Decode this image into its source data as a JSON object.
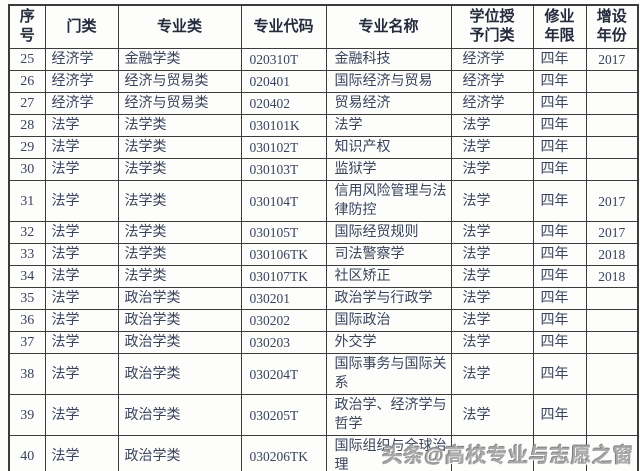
{
  "table": {
    "headers": [
      "序\n号",
      "门类",
      "专业类",
      "专业代码",
      "专业名称",
      "学位授\n予门类",
      "修业\n年限",
      "增设\n年份"
    ],
    "col_keys": [
      "no",
      "category",
      "major-class",
      "code",
      "name",
      "degree",
      "years",
      "year-added"
    ],
    "rows": [
      [
        "25",
        "经济学",
        "金融学类",
        "020310T",
        "金融科技",
        "经济学",
        "四年",
        "2017"
      ],
      [
        "26",
        "经济学",
        "经济与贸易类",
        "020401",
        "国际经济与贸易",
        "经济学",
        "四年",
        ""
      ],
      [
        "27",
        "经济学",
        "经济与贸易类",
        "020402",
        "贸易经济",
        "经济学",
        "四年",
        ""
      ],
      [
        "28",
        "法学",
        "法学类",
        "030101K",
        "法学",
        "法学",
        "四年",
        ""
      ],
      [
        "29",
        "法学",
        "法学类",
        "030102T",
        "知识产权",
        "法学",
        "四年",
        ""
      ],
      [
        "30",
        "法学",
        "法学类",
        "030103T",
        "监狱学",
        "法学",
        "四年",
        ""
      ],
      [
        "31",
        "法学",
        "法学类",
        "030104T",
        "信用风险管理与法律防控",
        "法学",
        "四年",
        "2017"
      ],
      [
        "32",
        "法学",
        "法学类",
        "030105T",
        "国际经贸规则",
        "法学",
        "四年",
        "2017"
      ],
      [
        "33",
        "法学",
        "法学类",
        "030106TK",
        "司法警察学",
        "法学",
        "四年",
        "2018"
      ],
      [
        "34",
        "法学",
        "法学类",
        "030107TK",
        "社区矫正",
        "法学",
        "四年",
        "2018"
      ],
      [
        "35",
        "法学",
        "政治学类",
        "030201",
        "政治学与行政学",
        "法学",
        "四年",
        ""
      ],
      [
        "36",
        "法学",
        "政治学类",
        "030202",
        "国际政治",
        "法学",
        "四年",
        ""
      ],
      [
        "37",
        "法学",
        "政治学类",
        "030203",
        "外交学",
        "法学",
        "四年",
        ""
      ],
      [
        "38",
        "法学",
        "政治学类",
        "030204T",
        "国际事务与国际关系",
        "法学",
        "四年",
        ""
      ],
      [
        "39",
        "法学",
        "政治学类",
        "030205T",
        "政治学、经济学与哲学",
        "法学",
        "四年",
        ""
      ],
      [
        "40",
        "法学",
        "政治学类",
        "030206TK",
        "国际组织与全球治理",
        "",
        "",
        ""
      ]
    ]
  },
  "watermark": {
    "text": "头条@高校专业与志愿之窗"
  },
  "colors": {
    "text": "#39435c",
    "header_text": "#242b3c",
    "border": "#3c3c3c",
    "background": "#fdfdfb",
    "watermark": "#a8a8a8"
  }
}
